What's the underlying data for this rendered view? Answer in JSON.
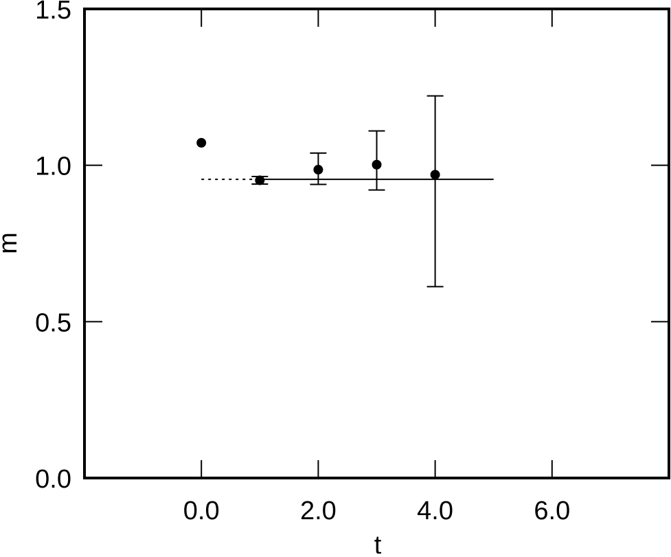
{
  "chart_data": {
    "type": "scatter",
    "title": "",
    "xlabel": "t",
    "ylabel": "m",
    "xlim": [
      -2.0,
      8.0
    ],
    "ylim": [
      0.0,
      1.5
    ],
    "grid": false,
    "x_ticks": [
      0.0,
      2.0,
      4.0,
      6.0
    ],
    "x_tick_labels": [
      "0.0",
      "2.0",
      "4.0",
      "6.0"
    ],
    "y_ticks": [
      0.0,
      0.5,
      1.0,
      1.5
    ],
    "y_tick_labels": [
      "0.0",
      "0.5",
      "1.0",
      "1.5"
    ],
    "series": [
      {
        "points": [
          {
            "x": 0,
            "y": 1.072,
            "err_low": 0,
            "err_high": 0
          },
          {
            "x": 1,
            "y": 0.952,
            "err_low": 0.012,
            "err_high": 0.012
          },
          {
            "x": 2,
            "y": 0.986,
            "err_low": 0.047,
            "err_high": 0.053
          },
          {
            "x": 3,
            "y": 1.002,
            "err_low": 0.081,
            "err_high": 0.108
          },
          {
            "x": 4,
            "y": 0.97,
            "err_low": 0.358,
            "err_high": 0.252
          }
        ]
      }
    ],
    "fit_line": {
      "y": 0.955,
      "x_start": 1.0,
      "x_end": 5.0
    },
    "fit_extrapolation": {
      "y": 0.955,
      "x_start": 0.0,
      "x_end": 1.0
    }
  }
}
